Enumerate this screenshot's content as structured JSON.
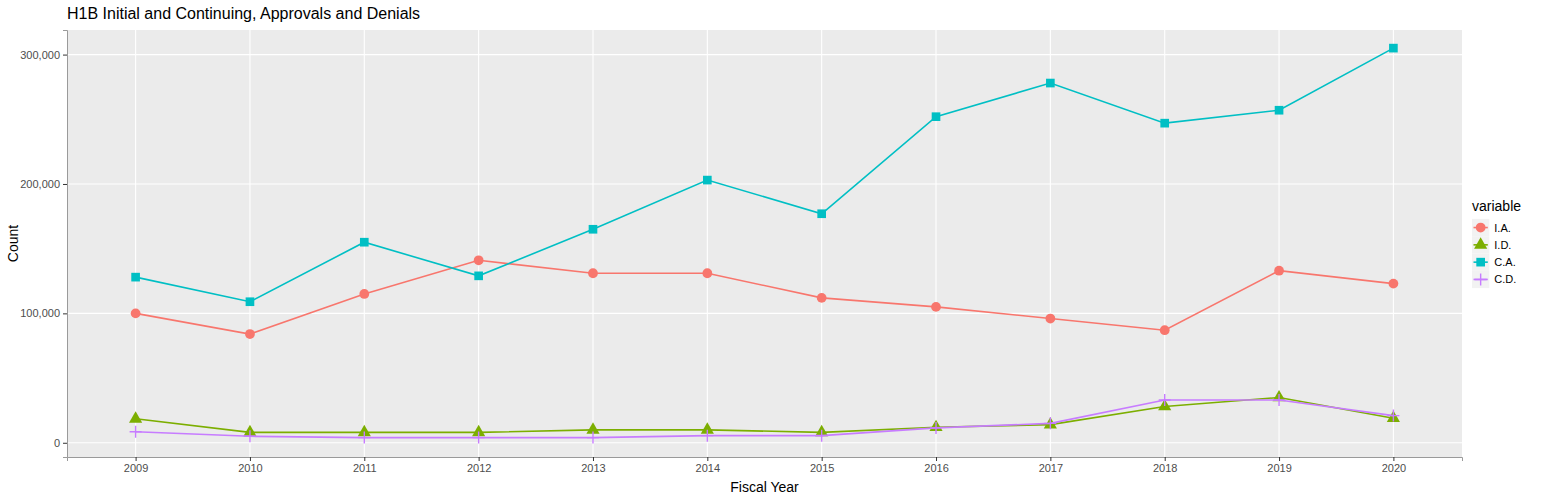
{
  "chart_data": {
    "type": "line",
    "title": "H1B Initial and Continuing, Approvals and Denials",
    "x_label": "Fiscal Year",
    "y_label": "Count",
    "legend_title": "variable",
    "x": [
      2009,
      2010,
      2011,
      2012,
      2013,
      2014,
      2015,
      2016,
      2017,
      2018,
      2019,
      2020
    ],
    "xlim": [
      2008.4,
      2020.6
    ],
    "xticks": [
      2009,
      2010,
      2011,
      2012,
      2013,
      2014,
      2015,
      2016,
      2017,
      2018,
      2019,
      2020
    ],
    "ylim": [
      -11000,
      319000
    ],
    "yticks": [
      0,
      {
        "value": 100000,
        "label": "100,000"
      },
      {
        "value": 200000,
        "label": "200,000"
      },
      {
        "value": 300000,
        "label": "300,000"
      }
    ],
    "grid": true,
    "legend": "right",
    "series": [
      {
        "name": "I.A.",
        "color": "#F8766D",
        "marker": "circle",
        "line_style": "solid",
        "values": [
          100000,
          84000,
          115000,
          141000,
          131000,
          131000,
          112000,
          105000,
          96000,
          87000,
          133000,
          123000
        ]
      },
      {
        "name": "I.D.",
        "color": "#7CAE00",
        "marker": "triangle",
        "line_style": "solid",
        "values": [
          18500,
          8000,
          8000,
          8000,
          10000,
          10000,
          8000,
          12000,
          14000,
          28000,
          35000,
          19000
        ]
      },
      {
        "name": "C.A.",
        "color": "#00BFC4",
        "marker": "square",
        "line_style": "solid",
        "values": [
          128000,
          109000,
          155000,
          129000,
          165000,
          203000,
          177000,
          252000,
          278000,
          247000,
          257000,
          305000
        ]
      },
      {
        "name": "C.D.",
        "color": "#C77CFF",
        "marker": "plus",
        "line_style": "solid",
        "values": [
          8500,
          5000,
          4000,
          4000,
          4000,
          5500,
          5500,
          11500,
          15000,
          33000,
          33000,
          21000
        ]
      }
    ]
  }
}
